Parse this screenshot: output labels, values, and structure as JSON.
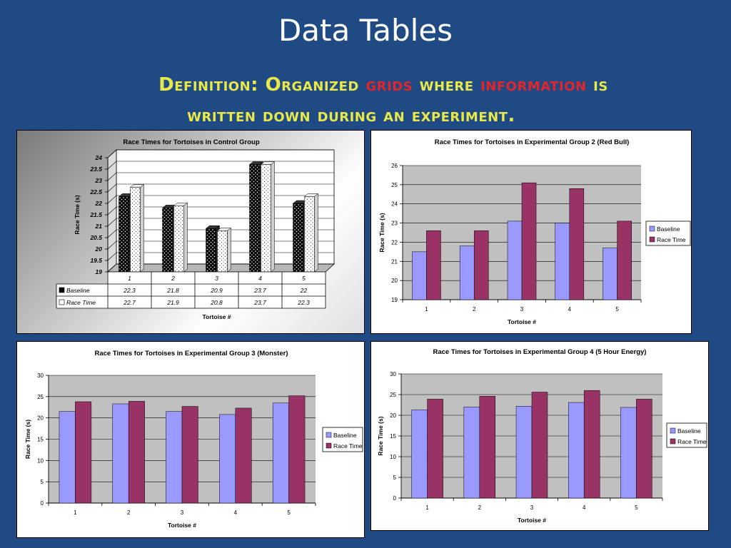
{
  "slide": {
    "title": "Data Tables",
    "definition": {
      "p1": "Definition:  Organized ",
      "p2": "grids",
      "p3": " where ",
      "p4": "information",
      "p5": " is",
      "line2": "written down during an experiment."
    }
  },
  "colors": {
    "background": "#1f4a84",
    "baseline": "#9999ff",
    "race": "#993366",
    "plot_bg": "#c0c0c0",
    "highlight": "#e0262a",
    "accent": "#e8e84a"
  },
  "chart_data": [
    {
      "type": "bar",
      "title": "Race Times for Tortoises in Control Group",
      "xlabel": "Tortoise #",
      "ylabel": "Race Time (s)",
      "ylim": [
        19,
        24
      ],
      "yticks": [
        "19",
        "19.5",
        "20",
        "20.5",
        "21",
        "21.5",
        "22",
        "22.5",
        "23",
        "23.5",
        "24"
      ],
      "categories": [
        "1",
        "2",
        "3",
        "4",
        "5"
      ],
      "series": [
        {
          "name": "Baseline",
          "values": [
            22.3,
            21.8,
            20.9,
            23.7,
            22
          ],
          "labels": [
            "22.3",
            "21.8",
            "20.9",
            "23.7",
            "22"
          ]
        },
        {
          "name": "Race Time",
          "values": [
            22.7,
            21.9,
            20.8,
            23.7,
            22.3
          ],
          "labels": [
            "22.7",
            "21.9",
            "20.8",
            "23.7",
            "22.3"
          ]
        }
      ],
      "style": "3d-bars-with-data-table"
    },
    {
      "type": "bar",
      "title": "Race Times for Tortoises in Experimental Group 2 (Red Bull)",
      "xlabel": "Tortoise #",
      "ylabel": "Race Time (s)",
      "ylim": [
        19,
        26
      ],
      "yticks": [
        "19",
        "20",
        "21",
        "22",
        "23",
        "24",
        "25",
        "26"
      ],
      "categories": [
        "1",
        "2",
        "3",
        "4",
        "5"
      ],
      "series": [
        {
          "name": "Baseline",
          "values": [
            21.5,
            21.8,
            23.1,
            23,
            21.7
          ]
        },
        {
          "name": "Race Time",
          "values": [
            22.6,
            22.6,
            25.1,
            24.8,
            23.1
          ]
        }
      ],
      "legend": "right"
    },
    {
      "type": "bar",
      "title": "Race Times for Tortoises in Experimental Group 3 (Monster)",
      "xlabel": "Tortoise #",
      "ylabel": "Race Time (s)",
      "ylim": [
        0,
        30
      ],
      "yticks": [
        "0",
        "5",
        "10",
        "15",
        "20",
        "25",
        "30"
      ],
      "categories": [
        "1",
        "2",
        "3",
        "4",
        "5"
      ],
      "series": [
        {
          "name": "Baseline",
          "values": [
            21.5,
            23.3,
            21.5,
            20.8,
            23.5
          ]
        },
        {
          "name": "Race Time",
          "values": [
            23.8,
            23.9,
            22.7,
            22.3,
            25.2
          ]
        }
      ],
      "legend": "right"
    },
    {
      "type": "bar",
      "title": "Race Times for Tortoises in Experimental Group 4 (5 Hour Energy)",
      "xlabel": "Tortoise #",
      "ylabel": "Race Time (s)",
      "ylim": [
        0,
        30
      ],
      "yticks": [
        "0",
        "5",
        "10",
        "15",
        "20",
        "25",
        "30"
      ],
      "categories": [
        "1",
        "2",
        "3",
        "4",
        "5"
      ],
      "series": [
        {
          "name": "Baseline",
          "values": [
            21.3,
            22,
            22.2,
            23.1,
            21.9
          ]
        },
        {
          "name": "Race Time",
          "values": [
            23.9,
            24.6,
            25.6,
            26,
            23.9
          ]
        }
      ],
      "legend": "right"
    }
  ]
}
